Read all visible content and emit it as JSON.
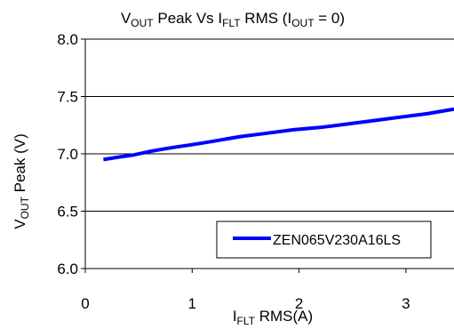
{
  "chart_data": {
    "type": "line",
    "title": {
      "main": "V",
      "sub1": "OUT",
      "mid": " Peak Vs I",
      "sub2": "FLT",
      "tail1": " RMS (I",
      "sub3": "OUT",
      "tail2": " = 0)"
    },
    "ylabel": {
      "main": "V",
      "sub": "OUT",
      "tail": " Peak (V)"
    },
    "xlabel": {
      "main": "I",
      "sub": "FLT",
      "tail": " RMS(A)"
    },
    "xlim": [
      0,
      3.45
    ],
    "ylim": [
      6.0,
      8.0
    ],
    "x_ticks": [
      "0",
      "1",
      "2",
      "3"
    ],
    "y_ticks": [
      "6.0",
      "6.5",
      "7.0",
      "7.5",
      "8.0"
    ],
    "grid": "horizontal",
    "legend_position": "bottom-right",
    "series": [
      {
        "name": "ZEN065V230A16LS",
        "color": "#0000ff",
        "x": [
          0.17,
          0.3,
          0.45,
          0.6,
          0.72,
          0.85,
          1.0,
          1.2,
          1.45,
          1.7,
          1.95,
          2.2,
          2.45,
          2.7,
          2.95,
          3.2,
          3.45
        ],
        "y": [
          6.95,
          6.97,
          6.99,
          7.02,
          7.04,
          7.06,
          7.08,
          7.11,
          7.15,
          7.18,
          7.21,
          7.23,
          7.26,
          7.29,
          7.32,
          7.35,
          7.39
        ]
      }
    ]
  }
}
